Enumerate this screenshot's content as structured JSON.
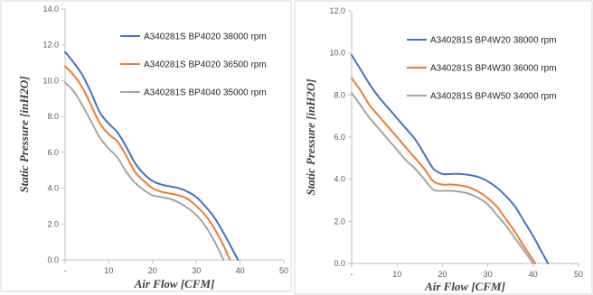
{
  "colors": {
    "blue": "#4472C4",
    "orange": "#ED7D31",
    "gray": "#A5A5A5",
    "axis": "#BFBFBF",
    "frame": "#D9D9D9"
  },
  "chart_data": [
    {
      "type": "line",
      "xlabel": "Air Flow [CFM]",
      "ylabel": "Static Pressure [inH2O]",
      "xlim": [
        0,
        50
      ],
      "ylim": [
        0,
        14
      ],
      "xticks": [
        "-",
        "10",
        "20",
        "30",
        "40",
        "50"
      ],
      "yticks": [
        "0.0",
        "2.0",
        "4.0",
        "6.0",
        "8.0",
        "10.0",
        "12.0",
        "14.0"
      ],
      "grid": false,
      "legend_position": "top-right",
      "series": [
        {
          "name": "A340281S BP4020 38000 rpm",
          "color": "#4472C4",
          "x": [
            0,
            2,
            4,
            6,
            8,
            10,
            12,
            14,
            16,
            18,
            20,
            22,
            24,
            26,
            28,
            30,
            32,
            34,
            36,
            38,
            39.5
          ],
          "y": [
            11.6,
            11.0,
            10.3,
            9.3,
            8.2,
            7.6,
            7.1,
            6.3,
            5.4,
            4.8,
            4.4,
            4.2,
            4.1,
            4.0,
            3.8,
            3.5,
            3.0,
            2.4,
            1.6,
            0.7,
            0.0
          ]
        },
        {
          "name": "A340281S BP4020 36500 rpm",
          "color": "#ED7D31",
          "x": [
            0,
            2,
            4,
            6,
            8,
            10,
            12,
            14,
            16,
            18,
            20,
            22,
            24,
            26,
            28,
            30,
            32,
            34,
            36,
            37.7
          ],
          "y": [
            10.8,
            10.3,
            9.6,
            8.6,
            7.6,
            7.0,
            6.6,
            5.8,
            4.9,
            4.4,
            4.0,
            3.8,
            3.7,
            3.6,
            3.4,
            3.0,
            2.5,
            1.8,
            0.9,
            0.0
          ]
        },
        {
          "name": "A340281S BP4040 35000 rpm",
          "color": "#A5A5A5",
          "x": [
            0,
            2,
            4,
            6,
            8,
            10,
            12,
            14,
            16,
            18,
            20,
            22,
            24,
            26,
            28,
            30,
            32,
            34,
            36.2
          ],
          "y": [
            9.9,
            9.4,
            8.6,
            7.7,
            6.8,
            6.2,
            5.7,
            4.9,
            4.3,
            3.9,
            3.6,
            3.5,
            3.4,
            3.2,
            2.9,
            2.5,
            1.9,
            1.1,
            0.0
          ]
        }
      ]
    },
    {
      "type": "line",
      "xlabel": "Air Flow [CFM]",
      "ylabel": "Static Pressure [inH2O]",
      "xlim": [
        0,
        50
      ],
      "ylim": [
        0,
        12
      ],
      "xticks": [
        "-",
        "10",
        "20",
        "30",
        "40",
        "50"
      ],
      "yticks": [
        "0.0",
        "2.0",
        "4.0",
        "6.0",
        "8.0",
        "10.0",
        "12.0"
      ],
      "grid": false,
      "legend_position": "top-right",
      "series": [
        {
          "name": "A340281S BP4W20 38000 rpm",
          "color": "#4472C4",
          "x": [
            0,
            2,
            4,
            6,
            8,
            10,
            12,
            14,
            16,
            18,
            20,
            22,
            24,
            26,
            28,
            30,
            32,
            34,
            36,
            38,
            40,
            42,
            43.3
          ],
          "y": [
            9.9,
            9.2,
            8.5,
            7.9,
            7.4,
            6.9,
            6.4,
            5.9,
            5.2,
            4.5,
            4.25,
            4.25,
            4.25,
            4.2,
            4.1,
            3.9,
            3.6,
            3.2,
            2.7,
            2.0,
            1.3,
            0.5,
            0.0
          ]
        },
        {
          "name": "A340281S BP4W30 36000 rpm",
          "color": "#ED7D31",
          "x": [
            0,
            2,
            4,
            6,
            8,
            10,
            12,
            14,
            16,
            18,
            20,
            22,
            24,
            26,
            28,
            30,
            32,
            34,
            36,
            38,
            40.5
          ],
          "y": [
            8.8,
            8.2,
            7.5,
            7.0,
            6.5,
            6.0,
            5.5,
            5.0,
            4.5,
            3.9,
            3.75,
            3.75,
            3.7,
            3.6,
            3.4,
            3.1,
            2.7,
            2.1,
            1.5,
            0.8,
            0.0
          ]
        },
        {
          "name": "A340281S BP4W50 34000 rpm",
          "color": "#A5A5A5",
          "x": [
            0,
            2,
            4,
            6,
            8,
            10,
            12,
            14,
            16,
            18,
            20,
            22,
            24,
            26,
            28,
            30,
            32,
            34,
            36,
            38,
            40
          ],
          "y": [
            8.1,
            7.5,
            6.9,
            6.4,
            5.9,
            5.4,
            4.9,
            4.5,
            4.0,
            3.5,
            3.45,
            3.45,
            3.4,
            3.3,
            3.1,
            2.8,
            2.3,
            1.8,
            1.2,
            0.6,
            0.0
          ]
        }
      ]
    }
  ]
}
